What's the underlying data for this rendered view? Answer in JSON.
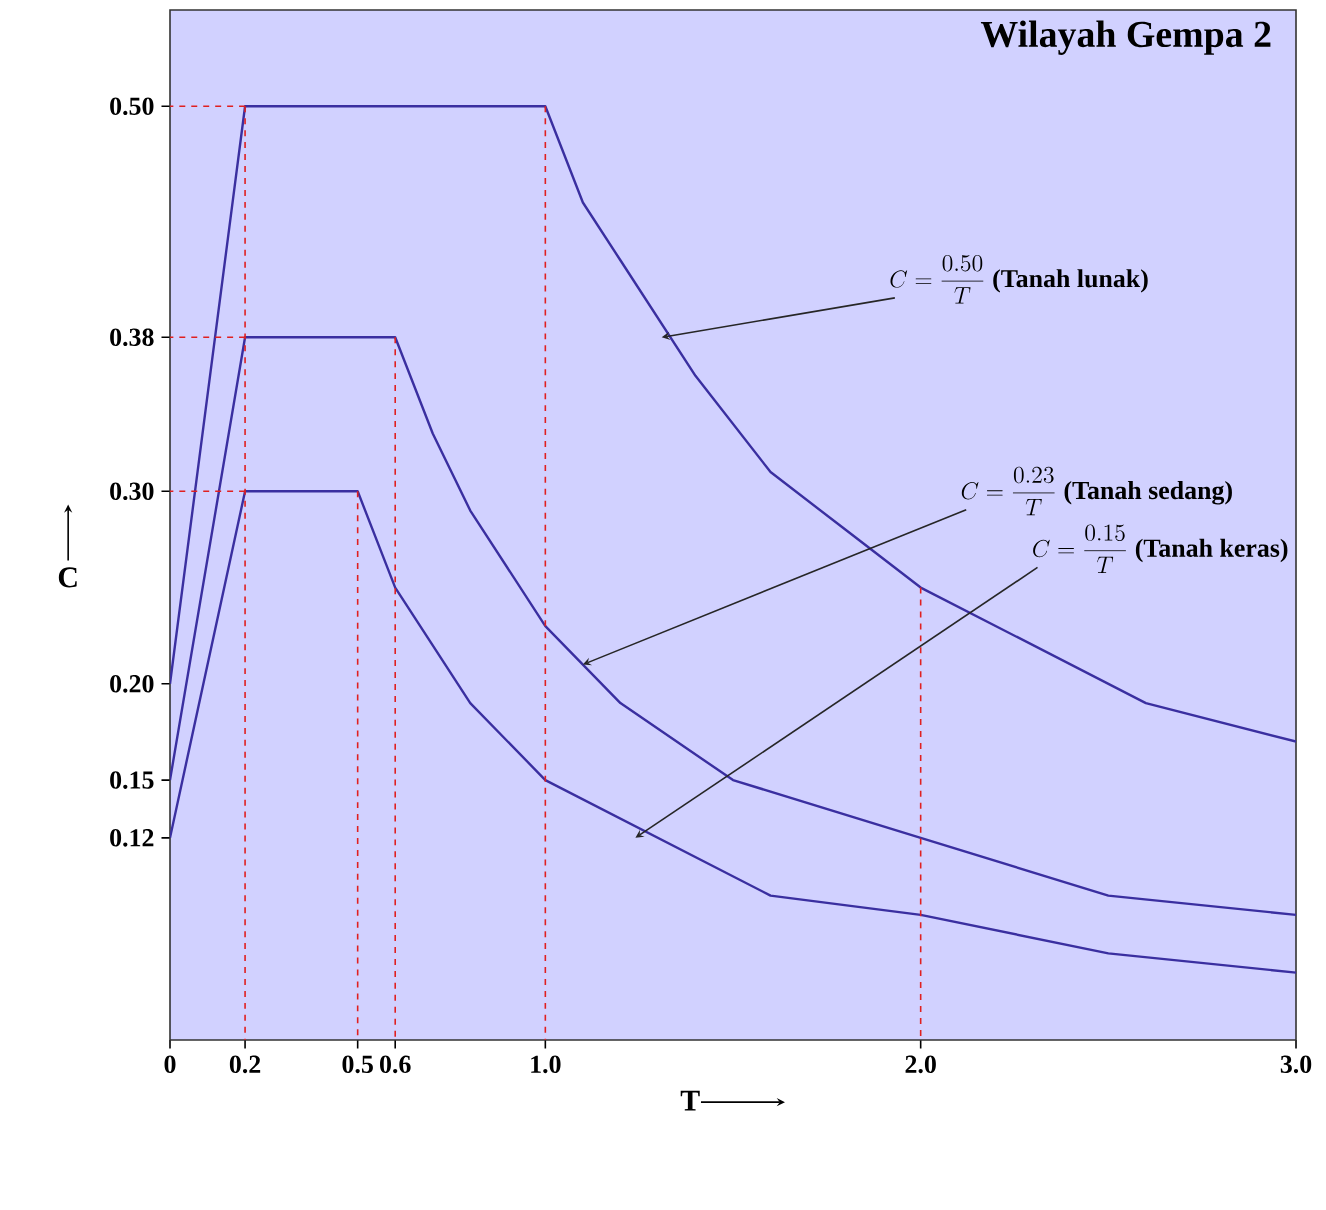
{
  "chart_data": {
    "type": "line",
    "title": "Wilayah Gempa 2",
    "xlabel": "T",
    "ylabel": "C",
    "xlim": [
      0,
      3.0
    ],
    "ylim": [
      0.015,
      0.55
    ],
    "xticks": [
      0,
      {
        "value": 0.2,
        "label": "0.2"
      },
      {
        "value": 0.5,
        "label": "0.5"
      },
      {
        "value": 0.6,
        "label": "0.6"
      },
      {
        "value": 1.0,
        "label": "1.0"
      },
      {
        "value": 2.0,
        "label": "2.0"
      },
      {
        "value": 3.0,
        "label": "3.0"
      }
    ],
    "yticks": [
      {
        "value": 0.12,
        "label": "0.12"
      },
      {
        "value": 0.15,
        "label": "0.15"
      },
      {
        "value": 0.2,
        "label": "0.20"
      },
      {
        "value": 0.3,
        "label": "0.30"
      },
      {
        "value": 0.38,
        "label": "0.38"
      },
      {
        "value": 0.5,
        "label": "0.50"
      }
    ],
    "series": [
      {
        "color": "#3a2fa0",
        "line_style": "solid",
        "x": [
          0,
          0.2,
          1.0,
          1.1,
          1.2,
          1.4,
          1.6,
          1.8,
          2.0,
          2.3,
          2.6,
          3.0
        ],
        "values": [
          0.2,
          0.5,
          0.5,
          0.45,
          0.42,
          0.36,
          0.31,
          0.28,
          0.25,
          0.22,
          0.19,
          0.17
        ]
      },
      {
        "color": "#3a2fa0",
        "line_style": "solid",
        "x": [
          0,
          0.2,
          0.6,
          0.7,
          0.8,
          1.0,
          1.2,
          1.5,
          2.0,
          2.5,
          3.0
        ],
        "values": [
          0.15,
          0.38,
          0.38,
          0.33,
          0.29,
          0.23,
          0.19,
          0.15,
          0.12,
          0.09,
          0.08
        ]
      },
      {
        "color": "#3a2fa0",
        "line_style": "solid",
        "x": [
          0,
          0.2,
          0.5,
          0.6,
          0.8,
          1.0,
          1.3,
          1.6,
          2.0,
          2.5,
          3.0
        ],
        "values": [
          0.12,
          0.3,
          0.3,
          0.25,
          0.19,
          0.15,
          0.12,
          0.09,
          0.08,
          0.06,
          0.05
        ]
      },
      {
        "color": "#e02020",
        "line_style": "dashed",
        "x": [
          0.2,
          0
        ],
        "values": [
          0.5,
          0.5
        ]
      },
      {
        "color": "#e02020",
        "line_style": "dashed",
        "x": [
          0.2,
          0
        ],
        "values": [
          0.38,
          0.38
        ]
      },
      {
        "color": "#e02020",
        "line_style": "dashed",
        "x": [
          0.2,
          0
        ],
        "values": [
          0.3,
          0.3
        ]
      },
      {
        "color": "#e02020",
        "line_style": "dashed",
        "x": [
          0.2,
          0.2
        ],
        "values": [
          0.5,
          0.015
        ]
      },
      {
        "color": "#e02020",
        "line_style": "dashed",
        "x": [
          0.5,
          0.5
        ],
        "values": [
          0.3,
          0.015
        ]
      },
      {
        "color": "#e02020",
        "line_style": "dashed",
        "x": [
          0.6,
          0.6
        ],
        "values": [
          0.38,
          0.015
        ]
      },
      {
        "color": "#e02020",
        "line_style": "dashed",
        "x": [
          1.0,
          1.0
        ],
        "values": [
          0.5,
          0.015
        ]
      },
      {
        "color": "#e02020",
        "line_style": "dashed",
        "x": [
          2.0,
          2.0
        ],
        "values": [
          0.25,
          0.015
        ]
      }
    ],
    "annotations": [
      {
        "text": "C = \\frac{0.50}{T}\\ \\mbox{(Tanah lunak)}",
        "x": 1.31,
        "y": 0.38
      },
      {
        "text": "C = \\frac{0.23}{T}\\ \\mbox{(Tanah sedang)}",
        "x": 1.1,
        "y": 0.21
      },
      {
        "text": "C = \\frac{0.15}{T}\\ \\mbox{(Tanah keras)}",
        "x": 1.24,
        "y": 0.12
      }
    ]
  }
}
